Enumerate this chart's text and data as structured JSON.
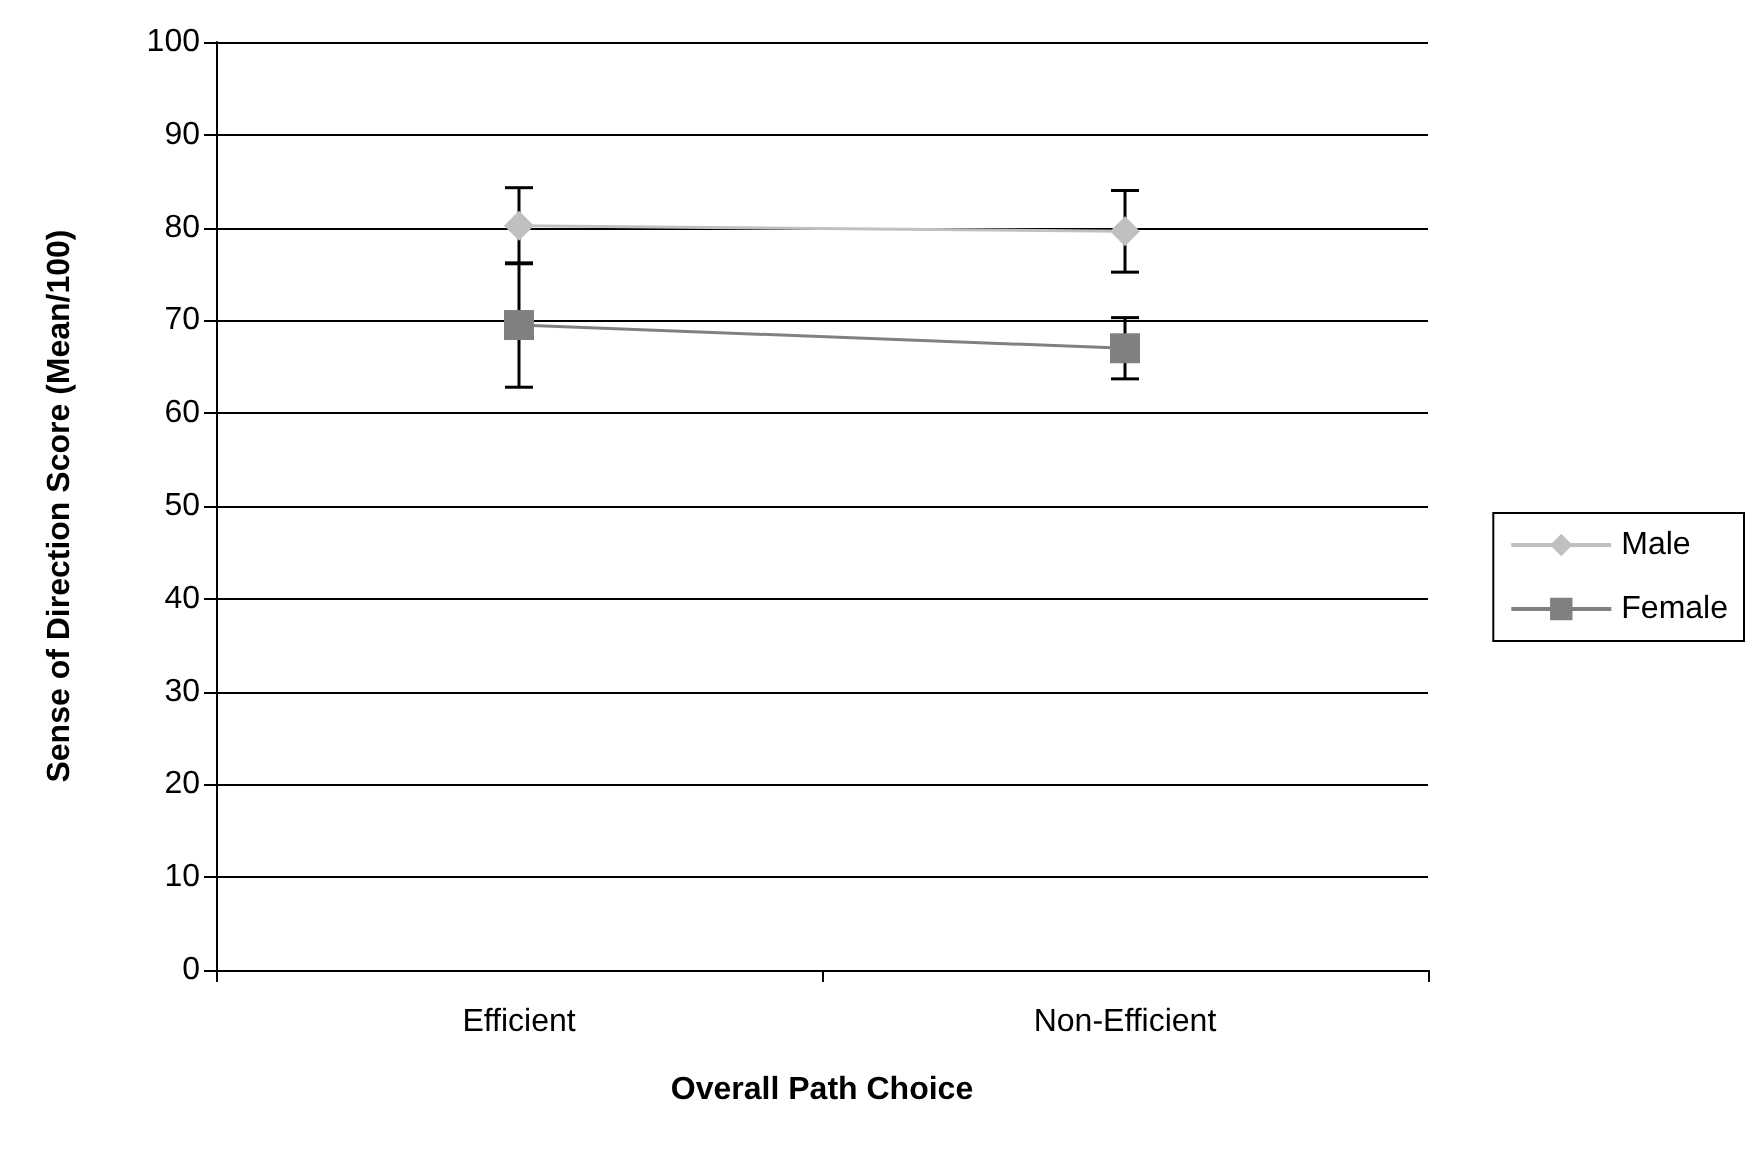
{
  "chart_data": {
    "type": "line",
    "xlabel": "Overall Path Choice",
    "ylabel": "Sense of Direction Score (Mean/100)",
    "categories": [
      "Efficient",
      "Non-Efficient"
    ],
    "series": [
      {
        "name": "Male",
        "color": "#c0c0c0",
        "values": [
          80.2,
          79.6
        ],
        "errors": [
          4.1,
          4.4
        ],
        "marker": "diamond"
      },
      {
        "name": "Female",
        "color": "#808080",
        "values": [
          69.5,
          67.0
        ],
        "errors": [
          6.7,
          3.3
        ],
        "marker": "square"
      }
    ],
    "ylim": [
      0,
      100
    ],
    "yticks": [
      0,
      10,
      20,
      30,
      40,
      50,
      60,
      70,
      80,
      90,
      100
    ],
    "grid": "y",
    "legend": "right",
    "line_style": "solid"
  }
}
